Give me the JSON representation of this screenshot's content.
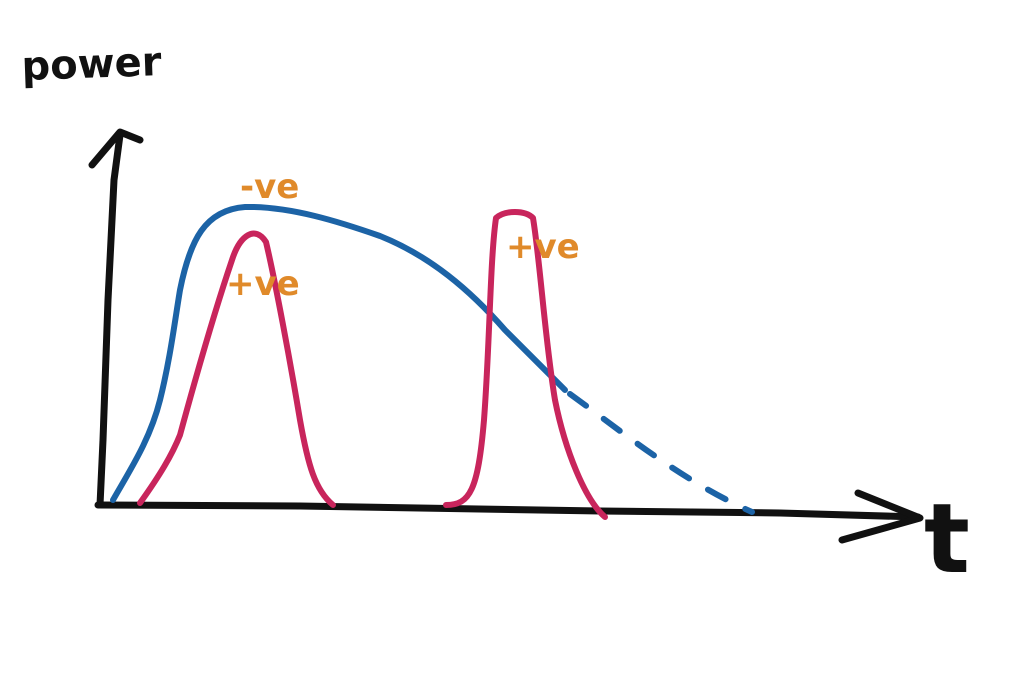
{
  "axes": {
    "y_label": "power",
    "x_label": "t"
  },
  "annotations": {
    "blue_curve_label": "-ve",
    "pink_peak_1_label": "+ve",
    "pink_peak_2_label": "+ve"
  },
  "colors": {
    "axis": "#111111",
    "blue_curve": "#1c63a6",
    "pink_curve": "#c8255c",
    "annotation": "#e08a2a"
  }
}
